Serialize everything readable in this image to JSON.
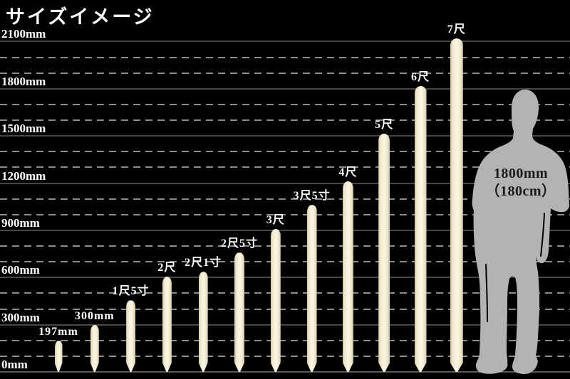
{
  "title": "サイズイメージ",
  "colors": {
    "background": "#000000",
    "stake_light": "#f9f3df",
    "stake_edge": "#cfc5a2",
    "grid_solid": "#484848",
    "grid_dashed": "#8c8c8c",
    "label_text": "#ffffff",
    "person_fill": "#b3b3b3",
    "person_text": "#1b1b1b"
  },
  "chart_data": {
    "type": "bar",
    "title": "サイズイメージ",
    "unit": "mm",
    "ylim": [
      0,
      2100
    ],
    "grid_major_mm": 300,
    "grid_minor_mm": 100,
    "y_tick_labels": [
      "0mm",
      "300mm",
      "600mm",
      "900mm",
      "1200mm",
      "1500mm",
      "1800mm",
      "2100mm"
    ],
    "categories": [
      "197mm",
      "300mm",
      "1尺5寸",
      "2尺",
      "2尺1寸",
      "2尺5寸",
      "3尺",
      "3尺5寸",
      "4尺",
      "5尺",
      "6尺",
      "7尺"
    ],
    "values_mm": [
      197,
      300,
      455,
      606,
      636,
      758,
      909,
      1061,
      1212,
      1515,
      1818,
      2121
    ],
    "legend_position": "none",
    "grid": "on",
    "reference_figure": {
      "height_mm": 1800,
      "label_line1": "1800mm",
      "label_line2": "（180cm）"
    }
  },
  "person": {
    "line1": "1800mm",
    "line2": "（180cm）"
  }
}
